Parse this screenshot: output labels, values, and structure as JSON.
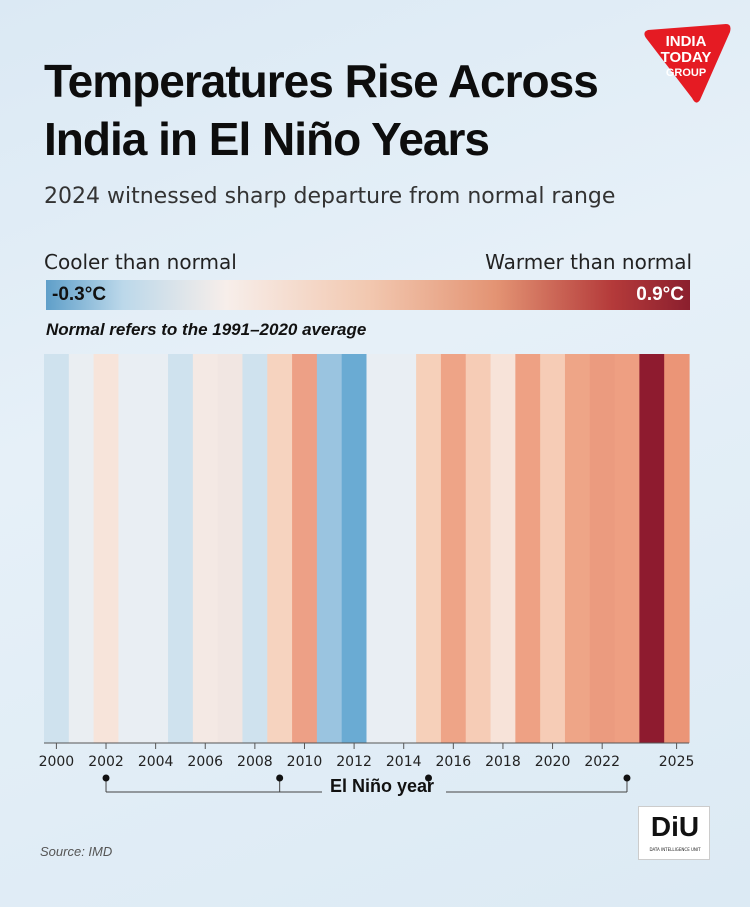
{
  "header": {
    "title": "Temperatures Rise Across India in El Niño Years",
    "subtitle": "2024 witnessed sharp departure from normal range",
    "logo_text": [
      "INDIA",
      "TODAY",
      "GROUP"
    ]
  },
  "scale": {
    "cool_label": "Cooler than normal",
    "warm_label": "Warmer than normal",
    "min_label": "-0.3°C",
    "max_label": "0.9°C",
    "note": "Normal refers to the 1991–2020 average"
  },
  "chart_data": {
    "type": "heatmap",
    "unit": "°C",
    "scale_range": [
      -0.3,
      0.9
    ],
    "years": [
      2000,
      2001,
      2002,
      2003,
      2004,
      2005,
      2006,
      2007,
      2008,
      2009,
      2010,
      2011,
      2012,
      2013,
      2014,
      2015,
      2016,
      2017,
      2018,
      2019,
      2020,
      2021,
      2022,
      2023,
      2024,
      2025
    ],
    "colors": [
      "#cfe2ee",
      "#eaeef2",
      "#f7e4da",
      "#e9eef3",
      "#e9eef3",
      "#cfe2ee",
      "#f4e9e4",
      "#f1e6e2",
      "#cfe2ee",
      "#f6d3bf",
      "#eda086",
      "#9ac4e0",
      "#6aabd3",
      "#e9eef3",
      "#e9eef3",
      "#f6d0ba",
      "#eea487",
      "#f6ccb6",
      "#f7e3d9",
      "#eea184",
      "#f6ccb6",
      "#eea587",
      "#eb9b7f",
      "#ee9f82",
      "#8e1b2f",
      "#eb9577"
    ],
    "tick_labels": [
      "2000",
      "2002",
      "2004",
      "2006",
      "2008",
      "2010",
      "2012",
      "2014",
      "2016",
      "2018",
      "2020",
      "2022",
      "2025"
    ],
    "tick_years": [
      2000,
      2002,
      2004,
      2006,
      2008,
      2010,
      2012,
      2014,
      2016,
      2018,
      2020,
      2022,
      2025
    ],
    "el_nino_years": [
      2002,
      2009,
      2015,
      2023
    ],
    "el_nino_label": "El Niño year"
  },
  "footer": {
    "source": "Source: IMD",
    "badge": "DiU",
    "badge_sub": "DATA INTELLIGENCE UNIT"
  }
}
